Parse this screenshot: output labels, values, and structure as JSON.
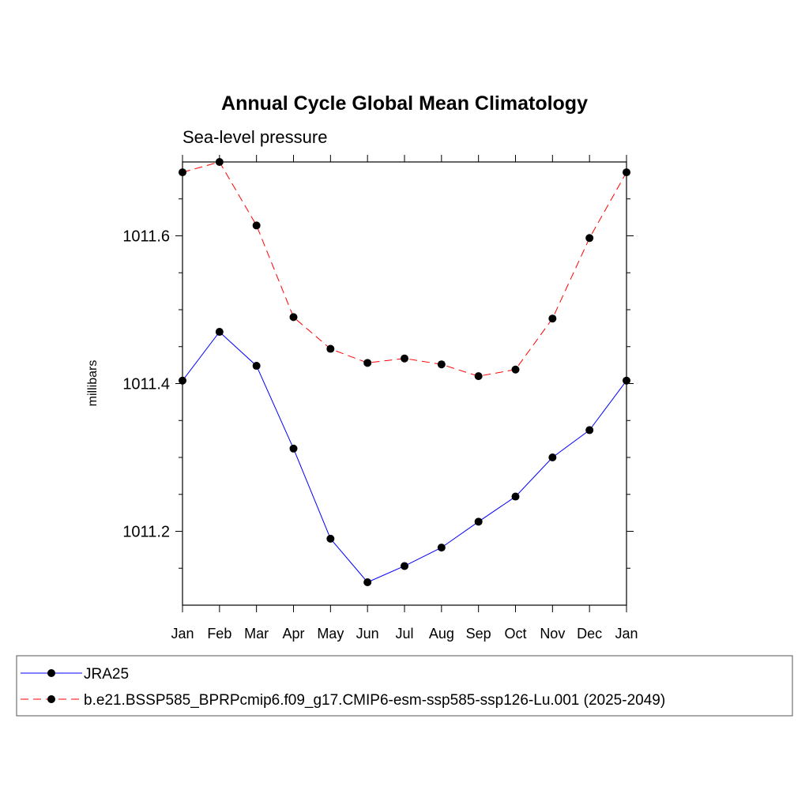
{
  "chart_data": {
    "type": "line",
    "title": "Annual Cycle Global Mean Climatology",
    "subtitle": "Sea-level pressure",
    "ylabel": "millibars",
    "xlabel": "",
    "categories": [
      "Jan",
      "Feb",
      "Mar",
      "Apr",
      "May",
      "Jun",
      "Jul",
      "Aug",
      "Sep",
      "Oct",
      "Nov",
      "Dec",
      "Jan"
    ],
    "ylim": [
      1011.1,
      1011.7
    ],
    "yticks_major": [
      1011.2,
      1011.4,
      1011.6
    ],
    "ytick_labels": [
      "1011.2",
      "1011.4",
      "1011.6"
    ],
    "yticks_minor": [
      1011.15,
      1011.25,
      1011.3,
      1011.35,
      1011.45,
      1011.5,
      1011.55,
      1011.65
    ],
    "legend_position": "bottom",
    "series": [
      {
        "name": "JRA25",
        "color": "#0000ff",
        "dashed": false,
        "values": [
          1011.404,
          1011.47,
          1011.424,
          1011.312,
          1011.19,
          1011.131,
          1011.153,
          1011.178,
          1011.213,
          1011.247,
          1011.3,
          1011.337,
          1011.404
        ]
      },
      {
        "name": "b.e21.BSSP585_BPRPcmip6.f09_g17.CMIP6-esm-ssp585-ssp126-Lu.001 (2025-2049)",
        "color": "#ff0000",
        "dashed": true,
        "values": [
          1011.686,
          1011.7,
          1011.614,
          1011.49,
          1011.447,
          1011.428,
          1011.434,
          1011.426,
          1011.41,
          1011.419,
          1011.488,
          1011.597,
          1011.686
        ]
      }
    ]
  }
}
